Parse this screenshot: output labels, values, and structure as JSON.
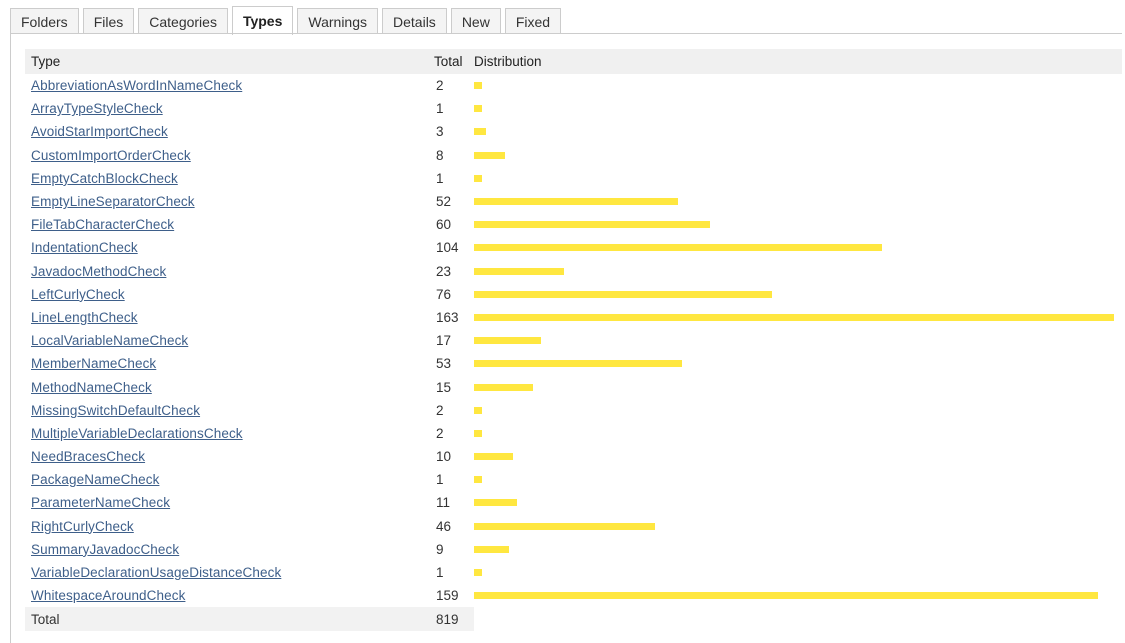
{
  "tabs": [
    {
      "label": "Folders",
      "active": false
    },
    {
      "label": "Files",
      "active": false
    },
    {
      "label": "Categories",
      "active": false
    },
    {
      "label": "Types",
      "active": true
    },
    {
      "label": "Warnings",
      "active": false
    },
    {
      "label": "Details",
      "active": false
    },
    {
      "label": "New",
      "active": false
    },
    {
      "label": "Fixed",
      "active": false
    }
  ],
  "table": {
    "headers": {
      "type": "Type",
      "total": "Total",
      "distribution": "Distribution"
    },
    "bar_color": "#ffe740",
    "max_total": 163,
    "rows": [
      {
        "type": "AbbreviationAsWordInNameCheck",
        "total": 2
      },
      {
        "type": "ArrayTypeStyleCheck",
        "total": 1
      },
      {
        "type": "AvoidStarImportCheck",
        "total": 3
      },
      {
        "type": "CustomImportOrderCheck",
        "total": 8
      },
      {
        "type": "EmptyCatchBlockCheck",
        "total": 1
      },
      {
        "type": "EmptyLineSeparatorCheck",
        "total": 52
      },
      {
        "type": "FileTabCharacterCheck",
        "total": 60
      },
      {
        "type": "IndentationCheck",
        "total": 104
      },
      {
        "type": "JavadocMethodCheck",
        "total": 23
      },
      {
        "type": "LeftCurlyCheck",
        "total": 76
      },
      {
        "type": "LineLengthCheck",
        "total": 163
      },
      {
        "type": "LocalVariableNameCheck",
        "total": 17
      },
      {
        "type": "MemberNameCheck",
        "total": 53
      },
      {
        "type": "MethodNameCheck",
        "total": 15
      },
      {
        "type": "MissingSwitchDefaultCheck",
        "total": 2
      },
      {
        "type": "MultipleVariableDeclarationsCheck",
        "total": 2
      },
      {
        "type": "NeedBracesCheck",
        "total": 10
      },
      {
        "type": "PackageNameCheck",
        "total": 1
      },
      {
        "type": "ParameterNameCheck",
        "total": 11
      },
      {
        "type": "RightCurlyCheck",
        "total": 46
      },
      {
        "type": "SummaryJavadocCheck",
        "total": 9
      },
      {
        "type": "VariableDeclarationUsageDistanceCheck",
        "total": 1
      },
      {
        "type": "WhitespaceAroundCheck",
        "total": 159
      }
    ],
    "footer": {
      "label": "Total",
      "total": 819
    }
  }
}
